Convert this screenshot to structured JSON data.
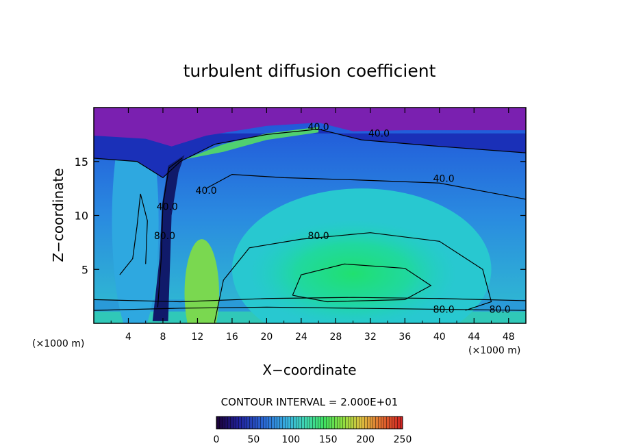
{
  "chart_data": {
    "type": "heatmap",
    "title": "turbulent diffusion coefficient",
    "xlabel": "X−coordinate",
    "ylabel": "Z−coordinate",
    "x_unit_left": "(×1000 m)",
    "x_unit_right": "(×1000 m)",
    "xlim": [
      0,
      50
    ],
    "ylim": [
      0,
      20
    ],
    "x_ticks": [
      {
        "value": 4,
        "label": "4"
      },
      {
        "value": 8,
        "label": "8"
      },
      {
        "value": 12,
        "label": "12"
      },
      {
        "value": 16,
        "label": "16"
      },
      {
        "value": 20,
        "label": "20"
      },
      {
        "value": 24,
        "label": "24"
      },
      {
        "value": 28,
        "label": "28"
      },
      {
        "value": 32,
        "label": "32"
      },
      {
        "value": 36,
        "label": "36"
      },
      {
        "value": 40,
        "label": "40"
      },
      {
        "value": 44,
        "label": "44"
      },
      {
        "value": 48,
        "label": "48"
      }
    ],
    "y_ticks": [
      {
        "value": 5,
        "label": "5"
      },
      {
        "value": 10,
        "label": "10"
      },
      {
        "value": 15,
        "label": "15"
      }
    ],
    "contour_interval_text": "CONTOUR INTERVAL = 2.000E+01",
    "colorbar": {
      "min": 0,
      "max": 250,
      "ticks": [
        {
          "value": 0,
          "label": "0"
        },
        {
          "value": 50,
          "label": "50"
        },
        {
          "value": 100,
          "label": "100"
        },
        {
          "value": 150,
          "label": "150"
        },
        {
          "value": 200,
          "label": "200"
        },
        {
          "value": 250,
          "label": "250"
        }
      ]
    },
    "contour_labels": [
      {
        "text": "40.0",
        "x": 26.0,
        "y": 17.9
      },
      {
        "text": "40.0",
        "x": 33.0,
        "y": 17.3
      },
      {
        "text": "40.0",
        "x": 40.5,
        "y": 13.1
      },
      {
        "text": "40.0",
        "x": 13.0,
        "y": 12.0
      },
      {
        "text": "40.0",
        "x": 8.5,
        "y": 10.5
      },
      {
        "text": "80.0",
        "x": 8.2,
        "y": 7.8
      },
      {
        "text": "80.0",
        "x": 26.0,
        "y": 7.8
      },
      {
        "text": "80.0",
        "x": 40.5,
        "y": 1.0
      },
      {
        "text": "80.0",
        "x": 47.0,
        "y": 1.0
      }
    ]
  }
}
